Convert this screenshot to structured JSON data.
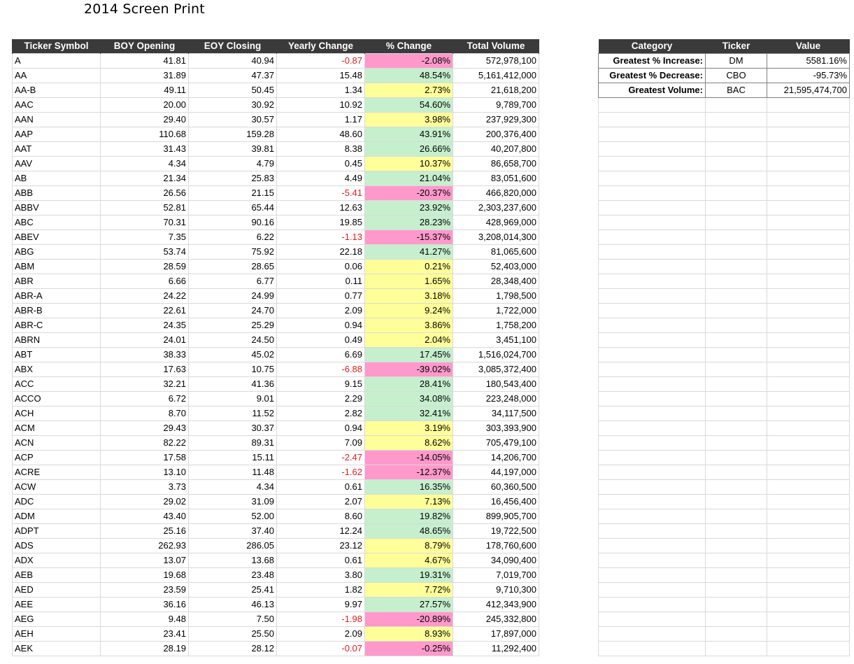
{
  "title": "2014 Screen Print",
  "main": {
    "headers": [
      "Ticker Symbol",
      "BOY Opening",
      "EOY Closing",
      "Yearly Change",
      "% Change",
      "Total Volume"
    ],
    "rows": [
      [
        "A",
        "41.81",
        "40.94",
        "-0.87",
        "-2.08%",
        "572,978,100"
      ],
      [
        "AA",
        "31.89",
        "47.37",
        "15.48",
        "48.54%",
        "5,161,412,000"
      ],
      [
        "AA-B",
        "49.11",
        "50.45",
        "1.34",
        "2.73%",
        "21,618,200"
      ],
      [
        "AAC",
        "20.00",
        "30.92",
        "10.92",
        "54.60%",
        "9,789,700"
      ],
      [
        "AAN",
        "29.40",
        "30.57",
        "1.17",
        "3.98%",
        "237,929,300"
      ],
      [
        "AAP",
        "110.68",
        "159.28",
        "48.60",
        "43.91%",
        "200,376,400"
      ],
      [
        "AAT",
        "31.43",
        "39.81",
        "8.38",
        "26.66%",
        "40,207,800"
      ],
      [
        "AAV",
        "4.34",
        "4.79",
        "0.45",
        "10.37%",
        "86,658,700"
      ],
      [
        "AB",
        "21.34",
        "25.83",
        "4.49",
        "21.04%",
        "83,051,600"
      ],
      [
        "ABB",
        "26.56",
        "21.15",
        "-5.41",
        "-20.37%",
        "466,820,000"
      ],
      [
        "ABBV",
        "52.81",
        "65.44",
        "12.63",
        "23.92%",
        "2,303,237,600"
      ],
      [
        "ABC",
        "70.31",
        "90.16",
        "19.85",
        "28.23%",
        "428,969,000"
      ],
      [
        "ABEV",
        "7.35",
        "6.22",
        "-1.13",
        "-15.37%",
        "3,208,014,300"
      ],
      [
        "ABG",
        "53.74",
        "75.92",
        "22.18",
        "41.27%",
        "81,065,600"
      ],
      [
        "ABM",
        "28.59",
        "28.65",
        "0.06",
        "0.21%",
        "52,403,000"
      ],
      [
        "ABR",
        "6.66",
        "6.77",
        "0.11",
        "1.65%",
        "28,348,400"
      ],
      [
        "ABR-A",
        "24.22",
        "24.99",
        "0.77",
        "3.18%",
        "1,798,500"
      ],
      [
        "ABR-B",
        "22.61",
        "24.70",
        "2.09",
        "9.24%",
        "1,722,000"
      ],
      [
        "ABR-C",
        "24.35",
        "25.29",
        "0.94",
        "3.86%",
        "1,758,200"
      ],
      [
        "ABRN",
        "24.01",
        "24.50",
        "0.49",
        "2.04%",
        "3,451,100"
      ],
      [
        "ABT",
        "38.33",
        "45.02",
        "6.69",
        "17.45%",
        "1,516,024,700"
      ],
      [
        "ABX",
        "17.63",
        "10.75",
        "-6.88",
        "-39.02%",
        "3,085,372,400"
      ],
      [
        "ACC",
        "32.21",
        "41.36",
        "9.15",
        "28.41%",
        "180,543,400"
      ],
      [
        "ACCO",
        "6.72",
        "9.01",
        "2.29",
        "34.08%",
        "223,248,000"
      ],
      [
        "ACH",
        "8.70",
        "11.52",
        "2.82",
        "32.41%",
        "34,117,500"
      ],
      [
        "ACM",
        "29.43",
        "30.37",
        "0.94",
        "3.19%",
        "303,393,900"
      ],
      [
        "ACN",
        "82.22",
        "89.31",
        "7.09",
        "8.62%",
        "705,479,100"
      ],
      [
        "ACP",
        "17.58",
        "15.11",
        "-2.47",
        "-14.05%",
        "14,206,700"
      ],
      [
        "ACRE",
        "13.10",
        "11.48",
        "-1.62",
        "-12.37%",
        "44,197,000"
      ],
      [
        "ACW",
        "3.73",
        "4.34",
        "0.61",
        "16.35%",
        "60,360,500"
      ],
      [
        "ADC",
        "29.02",
        "31.09",
        "2.07",
        "7.13%",
        "16,456,400"
      ],
      [
        "ADM",
        "43.40",
        "52.00",
        "8.60",
        "19.82%",
        "899,905,700"
      ],
      [
        "ADPT",
        "25.16",
        "37.40",
        "12.24",
        "48.65%",
        "19,722,500"
      ],
      [
        "ADS",
        "262.93",
        "286.05",
        "23.12",
        "8.79%",
        "178,760,600"
      ],
      [
        "ADX",
        "13.07",
        "13.68",
        "0.61",
        "4.67%",
        "34,090,400"
      ],
      [
        "AEB",
        "19.68",
        "23.48",
        "3.80",
        "19.31%",
        "7,019,700"
      ],
      [
        "AED",
        "23.59",
        "25.41",
        "1.82",
        "7.72%",
        "9,710,300"
      ],
      [
        "AEE",
        "36.16",
        "46.13",
        "9.97",
        "27.57%",
        "412,343,900"
      ],
      [
        "AEG",
        "9.48",
        "7.50",
        "-1.98",
        "-20.89%",
        "245,332,800"
      ],
      [
        "AEH",
        "23.41",
        "25.50",
        "2.09",
        "8.93%",
        "17,897,000"
      ],
      [
        "AEK",
        "28.19",
        "28.12",
        "-0.07",
        "-0.25%",
        "11,292,400"
      ]
    ]
  },
  "summary": {
    "headers": [
      "Category",
      "Ticker",
      "Value"
    ],
    "rows": [
      [
        "Greatest % Increase:",
        "DM",
        "5581.16%"
      ],
      [
        "Greatest % Decrease:",
        "CBO",
        "-95.73%"
      ],
      [
        "Greatest Volume:",
        "BAC",
        "21,595,474,700"
      ]
    ],
    "empty_rows": 38
  },
  "colors": {
    "header_bg": "#3a3a3a",
    "positive_large": "#c6efce",
    "positive_small": "#ffff99",
    "negative": "#ff99cc",
    "negative_text": "#e02020"
  }
}
